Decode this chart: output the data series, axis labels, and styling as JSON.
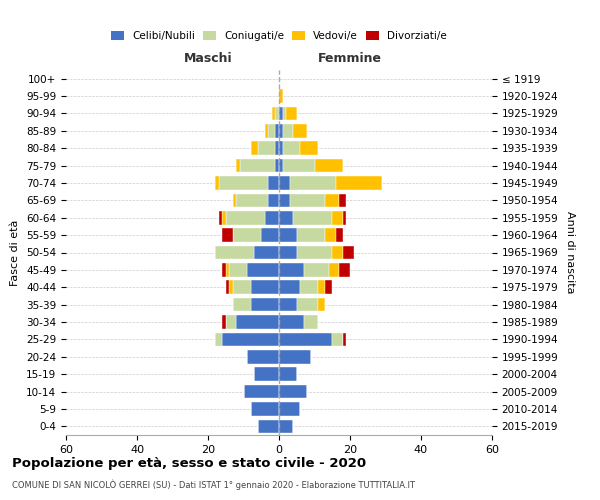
{
  "age_groups": [
    "0-4",
    "5-9",
    "10-14",
    "15-19",
    "20-24",
    "25-29",
    "30-34",
    "35-39",
    "40-44",
    "45-49",
    "50-54",
    "55-59",
    "60-64",
    "65-69",
    "70-74",
    "75-79",
    "80-84",
    "85-89",
    "90-94",
    "95-99",
    "100+"
  ],
  "birth_years": [
    "2015-2019",
    "2010-2014",
    "2005-2009",
    "2000-2004",
    "1995-1999",
    "1990-1994",
    "1985-1989",
    "1980-1984",
    "1975-1979",
    "1970-1974",
    "1965-1969",
    "1960-1964",
    "1955-1959",
    "1950-1954",
    "1945-1949",
    "1940-1944",
    "1935-1939",
    "1930-1934",
    "1925-1929",
    "1920-1924",
    "≤ 1919"
  ],
  "male": {
    "celibi": [
      6,
      8,
      10,
      7,
      9,
      16,
      12,
      8,
      8,
      9,
      7,
      5,
      4,
      3,
      3,
      1,
      1,
      1,
      0,
      0,
      0
    ],
    "coniugati": [
      0,
      0,
      0,
      0,
      0,
      2,
      3,
      5,
      5,
      5,
      11,
      8,
      11,
      9,
      14,
      10,
      5,
      2,
      1,
      0,
      0
    ],
    "vedovi": [
      0,
      0,
      0,
      0,
      0,
      0,
      0,
      0,
      1,
      1,
      0,
      0,
      1,
      1,
      1,
      1,
      2,
      1,
      1,
      0,
      0
    ],
    "divorziati": [
      0,
      0,
      0,
      0,
      0,
      0,
      1,
      0,
      1,
      1,
      0,
      3,
      1,
      0,
      0,
      0,
      0,
      0,
      0,
      0,
      0
    ]
  },
  "female": {
    "nubili": [
      4,
      6,
      8,
      5,
      9,
      15,
      7,
      5,
      6,
      7,
      5,
      5,
      4,
      3,
      3,
      1,
      1,
      1,
      1,
      0,
      0
    ],
    "coniugate": [
      0,
      0,
      0,
      0,
      0,
      3,
      4,
      6,
      5,
      7,
      10,
      8,
      11,
      10,
      13,
      9,
      5,
      3,
      1,
      0,
      0
    ],
    "vedove": [
      0,
      0,
      0,
      0,
      0,
      0,
      0,
      2,
      2,
      3,
      3,
      3,
      3,
      4,
      13,
      8,
      5,
      4,
      3,
      1,
      0
    ],
    "divorziate": [
      0,
      0,
      0,
      0,
      0,
      1,
      0,
      0,
      2,
      3,
      3,
      2,
      1,
      2,
      0,
      0,
      0,
      0,
      0,
      0,
      0
    ]
  },
  "colors": {
    "celibi": "#4472c4",
    "coniugati": "#c5d9a0",
    "vedovi": "#ffc000",
    "divorziati": "#c00000"
  },
  "title": "Popolazione per età, sesso e stato civile - 2020",
  "subtitle": "COMUNE DI SAN NICOLÒ GERREI (SU) - Dati ISTAT 1° gennaio 2020 - Elaborazione TUTTITALIA.IT",
  "ylabel_left": "Fasce di età",
  "ylabel_right": "Anni di nascita",
  "xlabel_left": "Maschi",
  "xlabel_right": "Femmine",
  "xlim": 60,
  "background_color": "#ffffff",
  "grid_color": "#cccccc"
}
